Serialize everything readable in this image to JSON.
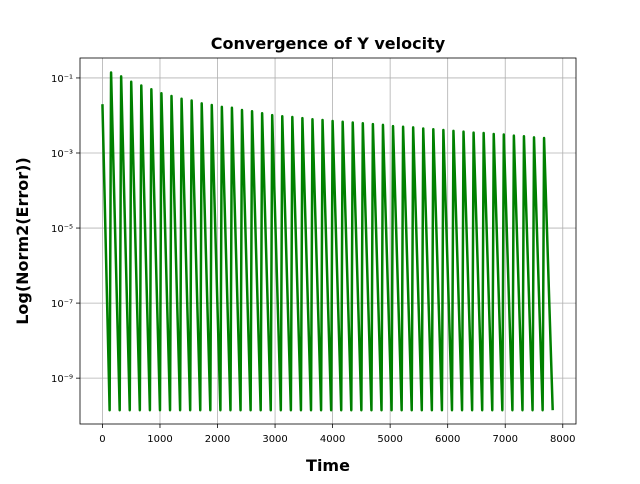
{
  "chart_data": {
    "type": "line",
    "title": "Convergence of Y velocity",
    "xlabel": "Time",
    "ylabel": "Log(Norm2(Error))",
    "x": [
      0,
      125,
      150,
      300,
      325,
      475,
      500,
      650,
      675,
      825,
      850,
      1000,
      1025,
      1175,
      1200,
      1350,
      1375,
      1525,
      1550,
      1700,
      1725,
      1875,
      1900,
      2050,
      2075,
      2225,
      2250,
      2400,
      2425,
      2575,
      2600,
      2750,
      2775,
      2925,
      2950,
      3100,
      3125,
      3275,
      3300,
      3450,
      3475,
      3625,
      3650,
      3800,
      3825,
      3975,
      4000,
      4150,
      4175,
      4325,
      4350,
      4500,
      4525,
      4675,
      4700,
      4850,
      4875,
      5025,
      5050,
      5200,
      5225,
      5375,
      5400,
      5550,
      5575,
      5725,
      5750,
      5900,
      5925,
      6075,
      6100,
      6250,
      6275,
      6425,
      6450,
      6600,
      6625,
      6775,
      6800,
      6950,
      6975,
      7125,
      7150,
      7300,
      7325,
      7475,
      7500,
      7650,
      7675,
      7825
    ],
    "series": [
      {
        "color": "#008000",
        "values": [
          0.02,
          1.4e-10,
          0.14,
          1.4e-10,
          0.11,
          1.4e-10,
          0.079,
          1.4e-10,
          0.063,
          1.4e-10,
          0.05,
          1.4e-10,
          0.039,
          1.4e-10,
          0.033,
          1.4e-10,
          0.028,
          1.4e-10,
          0.025,
          1.4e-10,
          0.021,
          1.4e-10,
          0.019,
          1.4e-10,
          0.017,
          1.4e-10,
          0.016,
          1.4e-10,
          0.014,
          1.4e-10,
          0.013,
          1.4e-10,
          0.0115,
          1.4e-10,
          0.0102,
          1.4e-10,
          0.0095,
          1.4e-10,
          0.0091,
          1.4e-10,
          0.0085,
          1.4e-10,
          0.0079,
          1.4e-10,
          0.0076,
          1.4e-10,
          0.0071,
          1.4e-10,
          0.0068,
          1.4e-10,
          0.0065,
          1.4e-10,
          0.0062,
          1.4e-10,
          0.0059,
          1.4e-10,
          0.0056,
          1.4e-10,
          0.0052,
          1.4e-10,
          0.005,
          1.4e-10,
          0.0048,
          1.4e-10,
          0.0045,
          1.4e-10,
          0.0043,
          1.4e-10,
          0.0041,
          1.4e-10,
          0.0039,
          1.4e-10,
          0.0037,
          1.4e-10,
          0.0035,
          1.4e-10,
          0.0034,
          1.4e-10,
          0.0032,
          1.4e-10,
          0.0031,
          1.4e-10,
          0.0029,
          1.4e-10,
          0.0028,
          1.4e-10,
          0.0026,
          1.4e-10,
          0.0025,
          1.4e-10
        ]
      }
    ],
    "xlim": [
      -390,
      8230
    ],
    "xticks": [
      0,
      1000,
      2000,
      3000,
      4000,
      5000,
      6000,
      7000,
      8000
    ],
    "ylim": [
      6e-11,
      0.34
    ],
    "ylog": true,
    "yticks": [
      {
        "value": 1e-09,
        "label": "10⁻⁹"
      },
      {
        "value": 1e-07,
        "label": "10⁻⁷"
      },
      {
        "value": 1e-05,
        "label": "10⁻⁵"
      },
      {
        "value": 0.001,
        "label": "10⁻³"
      },
      {
        "value": 0.1,
        "label": "10⁻¹"
      }
    ],
    "grid": true
  }
}
